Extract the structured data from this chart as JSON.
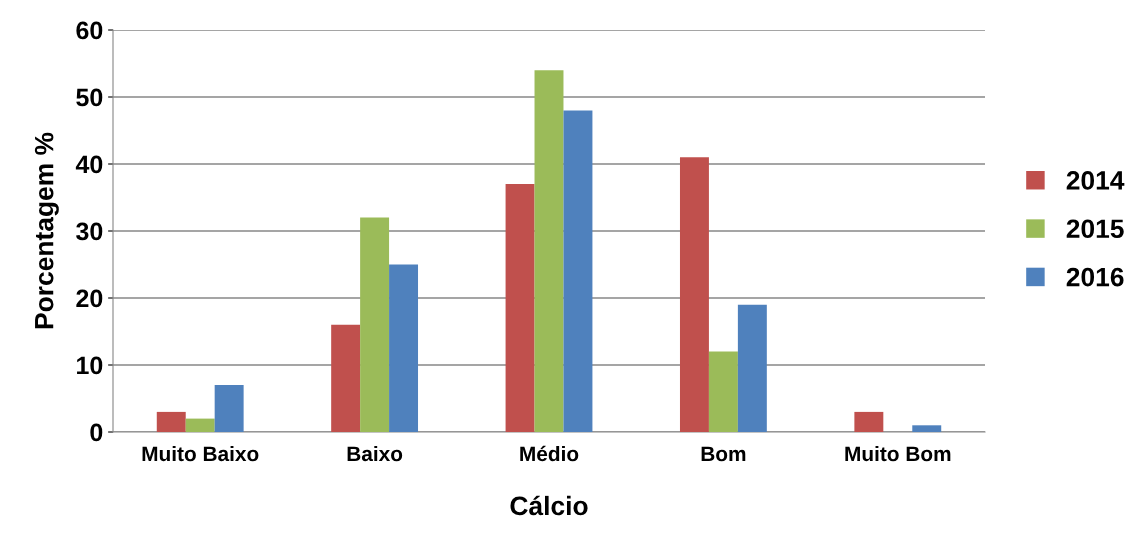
{
  "chart_data": {
    "type": "bar",
    "xlabel": "Cálcio",
    "ylabel": "Porcentagem %",
    "categories": [
      "Muito Baixo",
      "Baixo",
      "Médio",
      "Bom",
      "Muito Bom"
    ],
    "series": [
      {
        "name": "2014",
        "color": "#c0504d",
        "values": [
          3,
          16,
          37,
          41,
          3
        ]
      },
      {
        "name": "2015",
        "color": "#9bbb59",
        "values": [
          2,
          32,
          54,
          12,
          0
        ]
      },
      {
        "name": "2016",
        "color": "#4f81bd",
        "values": [
          7,
          25,
          48,
          19,
          1
        ]
      }
    ],
    "ylim": [
      0,
      60
    ],
    "yticks": [
      0,
      10,
      20,
      30,
      40,
      50,
      60
    ],
    "grid": "y",
    "legend": "right"
  }
}
